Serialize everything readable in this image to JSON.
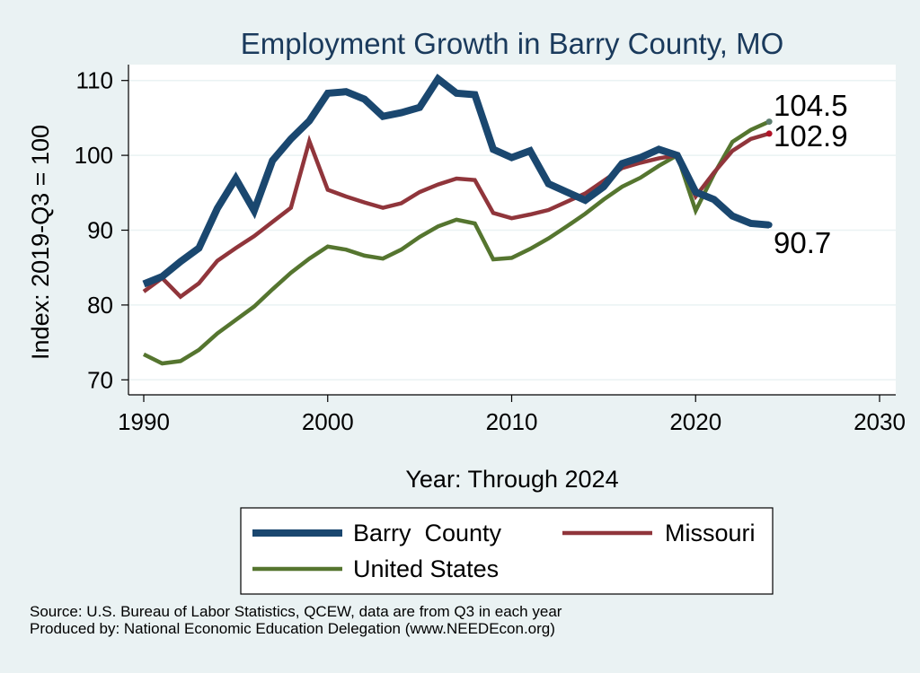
{
  "chart_data": {
    "type": "line",
    "title": "Employment Growth in Barry County, MO",
    "xlabel": "Year: Through 2024",
    "ylabel": "Index: 2019-Q3 = 100",
    "xlim": [
      1990,
      2030
    ],
    "ylim": [
      70,
      110
    ],
    "x_ticks": [
      "1990",
      "2000",
      "2010",
      "2020",
      "2030"
    ],
    "y_ticks": [
      "70",
      "80",
      "90",
      "100",
      "110"
    ],
    "grid": true,
    "legend_position": "bottom",
    "x": [
      1990,
      1991,
      1992,
      1993,
      1994,
      1995,
      1996,
      1997,
      1998,
      1999,
      2000,
      2001,
      2002,
      2003,
      2004,
      2005,
      2006,
      2007,
      2008,
      2009,
      2010,
      2011,
      2012,
      2013,
      2014,
      2015,
      2016,
      2017,
      2018,
      2019,
      2020,
      2021,
      2022,
      2023,
      2024
    ],
    "series": [
      {
        "name": "Barry  County",
        "color": "#1a476f",
        "width": 8,
        "values": [
          82.8,
          83.8,
          85.8,
          87.6,
          92.9,
          96.9,
          92.6,
          99.3,
          102.2,
          104.6,
          108.3,
          108.5,
          107.5,
          105.2,
          105.7,
          106.4,
          110.2,
          108.3,
          108.1,
          100.8,
          99.7,
          100.6,
          96.2,
          95.1,
          94.0,
          95.8,
          98.9,
          99.7,
          100.8,
          100.0,
          95.1,
          94.1,
          91.9,
          90.9,
          90.7
        ]
      },
      {
        "name": "Missouri",
        "color": "#90353b",
        "width": 4.5,
        "values": [
          81.8,
          83.6,
          81.1,
          82.9,
          85.9,
          87.6,
          89.2,
          91.1,
          93.0,
          101.9,
          95.4,
          94.5,
          93.7,
          93.0,
          93.6,
          95.1,
          96.1,
          96.9,
          96.7,
          92.3,
          91.6,
          92.1,
          92.7,
          93.8,
          94.9,
          96.6,
          98.3,
          99.0,
          99.6,
          100.0,
          94.5,
          97.7,
          100.6,
          102.2,
          102.9
        ]
      },
      {
        "name": "United States",
        "color": "#55752f",
        "width": 4.5,
        "values": [
          73.4,
          72.2,
          72.5,
          74.0,
          76.2,
          78.0,
          79.8,
          82.1,
          84.3,
          86.2,
          87.8,
          87.4,
          86.6,
          86.2,
          87.4,
          89.1,
          90.5,
          91.4,
          90.9,
          86.1,
          86.3,
          87.5,
          88.9,
          90.5,
          92.2,
          94.1,
          95.8,
          97.0,
          98.6,
          100.0,
          92.6,
          97.5,
          101.8,
          103.4,
          104.5
        ]
      }
    ],
    "end_labels": [
      {
        "text": "104.5",
        "value": 104.5,
        "dot_color": "#5c7d6f"
      },
      {
        "text": "102.9",
        "value": 102.9,
        "dot_color": "#b11226"
      },
      {
        "text": "90.7",
        "value": 90.7,
        "dot_color": "#1a476f"
      }
    ]
  },
  "legend": {
    "items": [
      "Barry  County",
      "Missouri",
      "United States"
    ]
  },
  "footer": {
    "source": "Source: U.S. Bureau of Labor Statistics, QCEW, data are from Q3 in each year",
    "produced_by": "Produced by: National Economic Education Delegation (www.NEEDEcon.org)"
  }
}
